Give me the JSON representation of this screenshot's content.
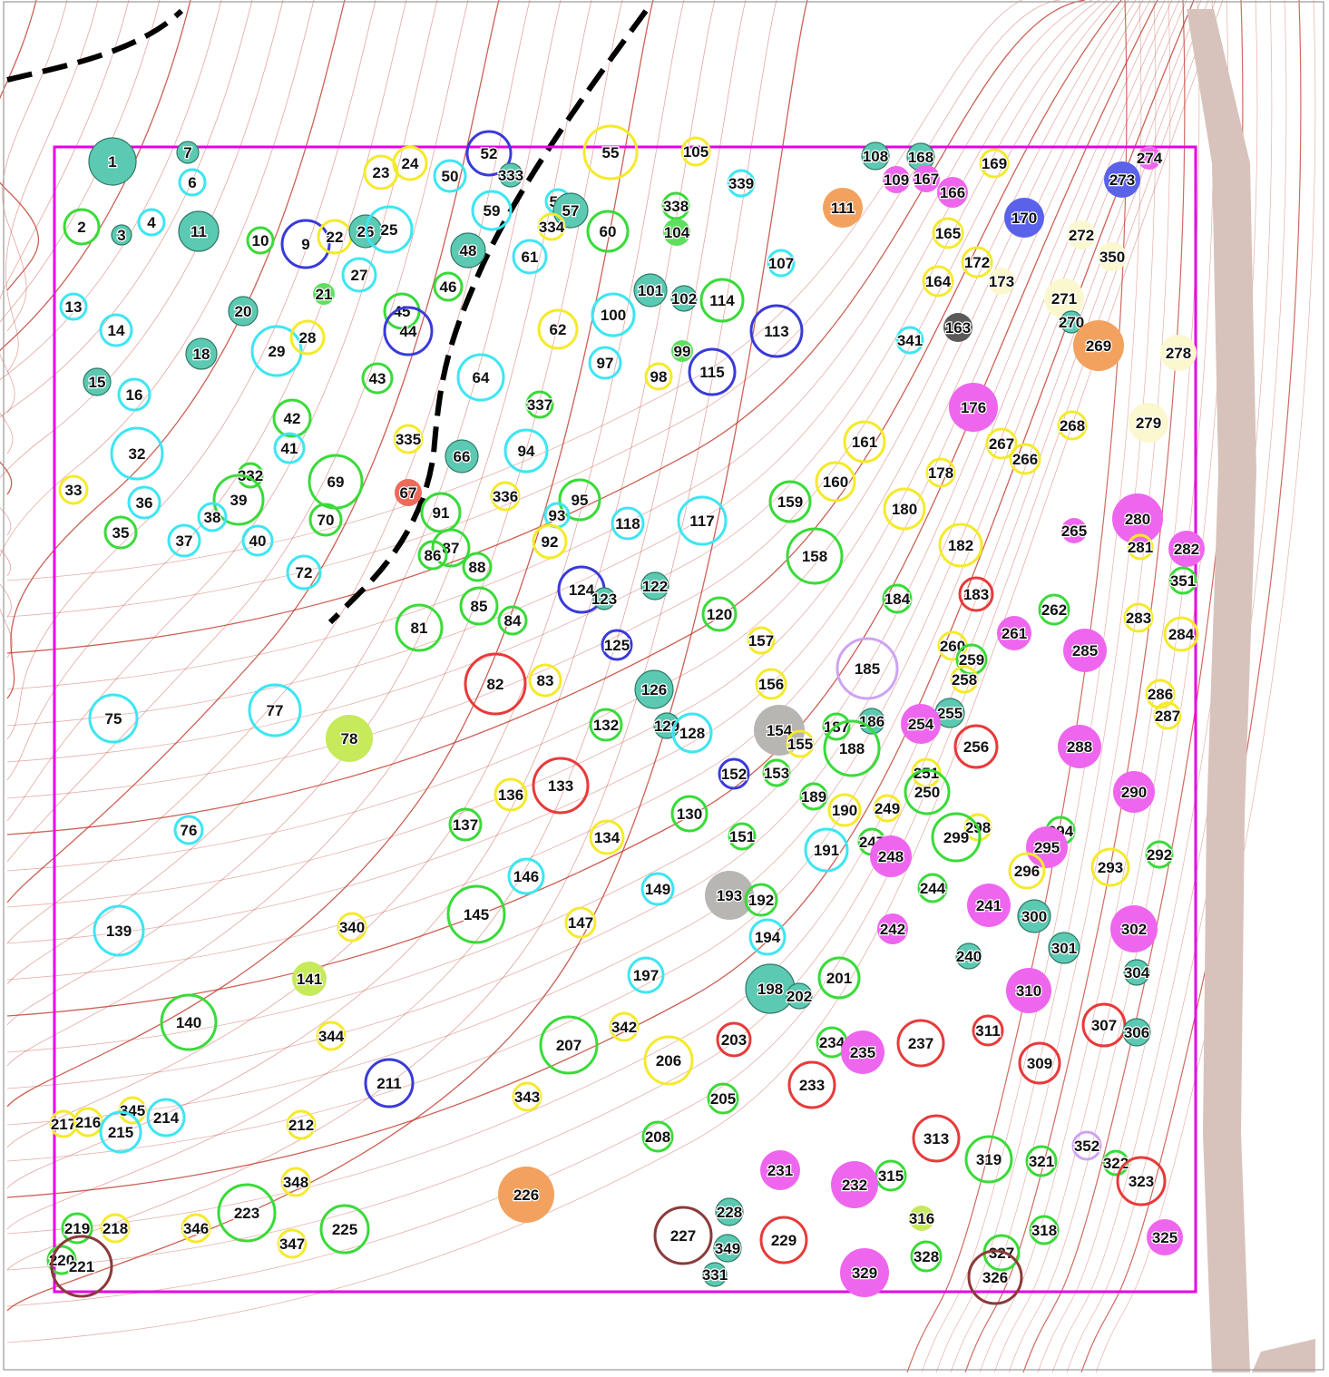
{
  "map": {
    "plot_border_color": "#e600e6",
    "road_color": "#d8c3bc",
    "contour_color": "#c0392b",
    "boundary_line_color": "#000000",
    "label_color": "#111111",
    "fills": {
      "cyan": "#66e8ea",
      "teal": "#5cc9b2",
      "green": "#5ee05e",
      "lime": "#c6ea5a",
      "magenta": "#ee66ee",
      "orange": "#f2a25e",
      "grey": "#b8b6b2",
      "darkgrey": "#5a5a5a",
      "blue": "#5a62ea",
      "cream": "#fbf7cf",
      "salmon": "#ee6a5a",
      "lavender": "#d7b7f0"
    },
    "outlines": {
      "cyan": "#3de6f2",
      "green": "#39db39",
      "yellow": "#f5ea2a",
      "blue": "#3a3ad9",
      "red": "#e83a3a",
      "brown": "#8b3a3a",
      "lavender": "#cda3f2",
      "dark": "#2e7a66"
    },
    "trees": [
      {
        "id": "1",
        "st": "f:teal"
      },
      {
        "id": "7",
        "st": "f:teal"
      },
      {
        "id": "6",
        "st": "o:cyan"
      },
      {
        "id": "2",
        "st": "o:green"
      },
      {
        "id": "3",
        "st": "f:teal"
      },
      {
        "id": "4",
        "st": "o:cyan"
      },
      {
        "id": "11",
        "st": "f:teal"
      },
      {
        "id": "10",
        "st": "o:green"
      },
      {
        "id": "9",
        "st": "o:blue"
      },
      {
        "id": "22",
        "st": "o:yellow"
      },
      {
        "id": "26",
        "st": "f:teal"
      },
      {
        "id": "25",
        "st": "o:cyan"
      },
      {
        "id": "23",
        "st": "o:yellow"
      },
      {
        "id": "24",
        "st": "o:yellow"
      },
      {
        "id": "50",
        "st": "o:cyan"
      },
      {
        "id": "52",
        "st": "o:blue"
      },
      {
        "id": "333",
        "st": "f:teal"
      },
      {
        "id": "55",
        "st": "o:yellow"
      },
      {
        "id": "105",
        "st": "o:yellow"
      },
      {
        "id": "108",
        "st": "f:teal"
      },
      {
        "id": "168",
        "st": "f:teal"
      },
      {
        "id": "109",
        "st": "f:magenta"
      },
      {
        "id": "167",
        "st": "f:magenta"
      },
      {
        "id": "166",
        "st": "f:magenta"
      },
      {
        "id": "169",
        "st": "o:yellow"
      },
      {
        "id": "273",
        "st": "f:blue"
      },
      {
        "id": "274",
        "st": "f:magenta"
      },
      {
        "id": "13",
        "st": "o:cyan"
      },
      {
        "id": "14",
        "st": "o:cyan"
      },
      {
        "id": "20",
        "st": "f:teal"
      },
      {
        "id": "27",
        "st": "o:cyan"
      },
      {
        "id": "21",
        "st": "f:green"
      },
      {
        "id": "48",
        "st": "f:teal"
      },
      {
        "id": "59",
        "st": "o:cyan"
      },
      {
        "id": "61",
        "st": "o:cyan"
      },
      {
        "id": "58",
        "st": "o:cyan"
      },
      {
        "id": "57",
        "st": "f:teal"
      },
      {
        "id": "334",
        "st": "o:yellow"
      },
      {
        "id": "60",
        "st": "o:green"
      },
      {
        "id": "338",
        "st": "o:green"
      },
      {
        "id": "104",
        "st": "f:green"
      },
      {
        "id": "339",
        "st": "o:cyan"
      },
      {
        "id": "111",
        "st": "f:orange"
      },
      {
        "id": "165",
        "st": "o:yellow"
      },
      {
        "id": "170",
        "st": "f:blue"
      },
      {
        "id": "272",
        "st": "f:cream"
      },
      {
        "id": "350",
        "st": "f:cream"
      },
      {
        "id": "107",
        "st": "o:cyan"
      },
      {
        "id": "172",
        "st": "o:yellow"
      },
      {
        "id": "173",
        "st": "f:cream"
      },
      {
        "id": "164",
        "st": "o:yellow"
      },
      {
        "id": "271",
        "st": "f:cream"
      },
      {
        "id": "270",
        "st": "f:teal"
      },
      {
        "id": "269",
        "st": "f:orange"
      },
      {
        "id": "278",
        "st": "f:cream"
      },
      {
        "id": "18",
        "st": "f:teal"
      },
      {
        "id": "29",
        "st": "o:cyan"
      },
      {
        "id": "28",
        "st": "o:yellow"
      },
      {
        "id": "45",
        "st": "o:green"
      },
      {
        "id": "44",
        "st": "o:blue"
      },
      {
        "id": "46",
        "st": "o:green"
      },
      {
        "id": "62",
        "st": "o:yellow"
      },
      {
        "id": "100",
        "st": "o:cyan"
      },
      {
        "id": "101",
        "st": "f:teal"
      },
      {
        "id": "102",
        "st": "f:teal"
      },
      {
        "id": "114",
        "st": "o:green"
      },
      {
        "id": "113",
        "st": "o:blue"
      },
      {
        "id": "341",
        "st": "o:cyan"
      },
      {
        "id": "163",
        "st": "f:darkgrey"
      },
      {
        "id": "15",
        "st": "f:teal"
      },
      {
        "id": "16",
        "st": "o:cyan"
      },
      {
        "id": "43",
        "st": "o:green"
      },
      {
        "id": "64",
        "st": "o:cyan"
      },
      {
        "id": "97",
        "st": "o:cyan"
      },
      {
        "id": "98",
        "st": "o:yellow"
      },
      {
        "id": "99",
        "st": "f:green"
      },
      {
        "id": "115",
        "st": "o:blue"
      },
      {
        "id": "176",
        "st": "f:magenta"
      },
      {
        "id": "268",
        "st": "o:yellow"
      },
      {
        "id": "279",
        "st": "f:cream"
      },
      {
        "id": "337",
        "st": "o:green"
      },
      {
        "id": "42",
        "st": "o:green"
      },
      {
        "id": "41",
        "st": "o:cyan"
      },
      {
        "id": "32",
        "st": "o:cyan"
      },
      {
        "id": "335",
        "st": "o:yellow"
      },
      {
        "id": "66",
        "st": "f:teal"
      },
      {
        "id": "94",
        "st": "o:cyan"
      },
      {
        "id": "161",
        "st": "o:yellow"
      },
      {
        "id": "267",
        "st": "o:yellow"
      },
      {
        "id": "266",
        "st": "o:yellow"
      },
      {
        "id": "178",
        "st": "o:yellow"
      },
      {
        "id": "33",
        "st": "o:yellow"
      },
      {
        "id": "332",
        "st": "o:green"
      },
      {
        "id": "39",
        "st": "o:green"
      },
      {
        "id": "69",
        "st": "o:green"
      },
      {
        "id": "67",
        "st": "f:salmon"
      },
      {
        "id": "336",
        "st": "o:yellow"
      },
      {
        "id": "95",
        "st": "o:green"
      },
      {
        "id": "160",
        "st": "o:yellow"
      },
      {
        "id": "159",
        "st": "o:green"
      },
      {
        "id": "180",
        "st": "o:yellow"
      },
      {
        "id": "280",
        "st": "f:magenta"
      },
      {
        "id": "36",
        "st": "o:cyan"
      },
      {
        "id": "38",
        "st": "o:cyan"
      },
      {
        "id": "70",
        "st": "o:green"
      },
      {
        "id": "91",
        "st": "o:green"
      },
      {
        "id": "93",
        "st": "o:cyan"
      },
      {
        "id": "118",
        "st": "o:cyan"
      },
      {
        "id": "117",
        "st": "o:cyan"
      },
      {
        "id": "265",
        "st": "f:magenta"
      },
      {
        "id": "35",
        "st": "o:green"
      },
      {
        "id": "37",
        "st": "o:cyan"
      },
      {
        "id": "40",
        "st": "o:cyan"
      },
      {
        "id": "87",
        "st": "o:green"
      },
      {
        "id": "86",
        "st": "o:green"
      },
      {
        "id": "92",
        "st": "o:yellow"
      },
      {
        "id": "158",
        "st": "o:green"
      },
      {
        "id": "182",
        "st": "o:yellow"
      },
      {
        "id": "281",
        "st": "o:yellow"
      },
      {
        "id": "282",
        "st": "f:magenta"
      },
      {
        "id": "72",
        "st": "o:cyan"
      },
      {
        "id": "88",
        "st": "o:green"
      },
      {
        "id": "124",
        "st": "o:blue"
      },
      {
        "id": "123",
        "st": "f:teal"
      },
      {
        "id": "122",
        "st": "f:teal"
      },
      {
        "id": "351",
        "st": "o:green"
      },
      {
        "id": "85",
        "st": "o:green"
      },
      {
        "id": "84",
        "st": "o:green"
      },
      {
        "id": "184",
        "st": "o:green"
      },
      {
        "id": "183",
        "st": "o:red"
      },
      {
        "id": "262",
        "st": "o:green"
      },
      {
        "id": "81",
        "st": "o:green"
      },
      {
        "id": "120",
        "st": "o:green"
      },
      {
        "id": "283",
        "st": "o:yellow"
      },
      {
        "id": "157",
        "st": "o:yellow"
      },
      {
        "id": "261",
        "st": "f:magenta"
      },
      {
        "id": "284",
        "st": "o:yellow"
      },
      {
        "id": "125",
        "st": "o:blue"
      },
      {
        "id": "260",
        "st": "o:yellow"
      },
      {
        "id": "259",
        "st": "o:green"
      },
      {
        "id": "285",
        "st": "f:magenta"
      },
      {
        "id": "185",
        "st": "o:lavender"
      },
      {
        "id": "82",
        "st": "o:red"
      },
      {
        "id": "83",
        "st": "o:yellow"
      },
      {
        "id": "258",
        "st": "o:yellow"
      },
      {
        "id": "126",
        "st": "f:teal"
      },
      {
        "id": "156",
        "st": "o:yellow"
      },
      {
        "id": "286",
        "st": "o:yellow"
      },
      {
        "id": "77",
        "st": "o:cyan"
      },
      {
        "id": "75",
        "st": "o:cyan"
      },
      {
        "id": "287",
        "st": "o:yellow"
      },
      {
        "id": "255",
        "st": "f:teal"
      },
      {
        "id": "186",
        "st": "f:teal"
      },
      {
        "id": "187",
        "st": "o:green"
      },
      {
        "id": "132",
        "st": "o:green"
      },
      {
        "id": "129",
        "st": "f:teal"
      },
      {
        "id": "128",
        "st": "o:cyan"
      },
      {
        "id": "154",
        "st": "f:grey"
      },
      {
        "id": "254",
        "st": "f:magenta"
      },
      {
        "id": "78",
        "st": "f:lime"
      },
      {
        "id": "155",
        "st": "o:yellow"
      },
      {
        "id": "188",
        "st": "o:green"
      },
      {
        "id": "256",
        "st": "o:red"
      },
      {
        "id": "288",
        "st": "f:magenta"
      },
      {
        "id": "152",
        "st": "o:blue"
      },
      {
        "id": "153",
        "st": "o:green"
      },
      {
        "id": "251",
        "st": "o:yellow"
      },
      {
        "id": "133",
        "st": "o:red"
      },
      {
        "id": "136",
        "st": "o:yellow"
      },
      {
        "id": "250",
        "st": "o:green"
      },
      {
        "id": "290",
        "st": "f:magenta"
      },
      {
        "id": "189",
        "st": "o:green"
      },
      {
        "id": "190",
        "st": "o:yellow"
      },
      {
        "id": "249",
        "st": "o:yellow"
      },
      {
        "id": "130",
        "st": "o:green"
      },
      {
        "id": "137",
        "st": "o:green"
      },
      {
        "id": "298",
        "st": "o:yellow"
      },
      {
        "id": "294",
        "st": "o:green"
      },
      {
        "id": "76",
        "st": "o:cyan"
      },
      {
        "id": "134",
        "st": "o:yellow"
      },
      {
        "id": "151",
        "st": "o:green"
      },
      {
        "id": "299",
        "st": "o:green"
      },
      {
        "id": "295",
        "st": "f:magenta"
      },
      {
        "id": "191",
        "st": "o:cyan"
      },
      {
        "id": "247",
        "st": "o:green"
      },
      {
        "id": "248",
        "st": "f:magenta"
      },
      {
        "id": "292",
        "st": "o:green"
      },
      {
        "id": "296",
        "st": "o:yellow"
      },
      {
        "id": "293",
        "st": "o:yellow"
      },
      {
        "id": "146",
        "st": "o:cyan"
      },
      {
        "id": "244",
        "st": "o:green"
      },
      {
        "id": "149",
        "st": "o:cyan"
      },
      {
        "id": "193",
        "st": "f:grey"
      },
      {
        "id": "192",
        "st": "o:green"
      },
      {
        "id": "241",
        "st": "f:magenta"
      },
      {
        "id": "145",
        "st": "o:green"
      },
      {
        "id": "300",
        "st": "f:teal"
      },
      {
        "id": "147",
        "st": "o:yellow"
      },
      {
        "id": "139",
        "st": "o:cyan"
      },
      {
        "id": "340",
        "st": "o:yellow"
      },
      {
        "id": "242",
        "st": "f:magenta"
      },
      {
        "id": "302",
        "st": "f:magenta"
      },
      {
        "id": "194",
        "st": "o:cyan"
      },
      {
        "id": "301",
        "st": "f:teal"
      },
      {
        "id": "240",
        "st": "f:teal"
      },
      {
        "id": "197",
        "st": "o:cyan"
      },
      {
        "id": "304",
        "st": "f:teal"
      },
      {
        "id": "141",
        "st": "f:lime"
      },
      {
        "id": "201",
        "st": "o:green"
      },
      {
        "id": "198",
        "st": "f:teal"
      },
      {
        "id": "202",
        "st": "f:teal"
      },
      {
        "id": "310",
        "st": "f:magenta"
      },
      {
        "id": "140",
        "st": "o:green"
      },
      {
        "id": "342",
        "st": "o:yellow"
      },
      {
        "id": "307",
        "st": "o:red"
      },
      {
        "id": "306",
        "st": "f:teal"
      },
      {
        "id": "311",
        "st": "o:red"
      },
      {
        "id": "344",
        "st": "o:yellow"
      },
      {
        "id": "207",
        "st": "o:green"
      },
      {
        "id": "203",
        "st": "o:red"
      },
      {
        "id": "234",
        "st": "o:green"
      },
      {
        "id": "237",
        "st": "o:red"
      },
      {
        "id": "235",
        "st": "f:magenta"
      },
      {
        "id": "206",
        "st": "o:yellow"
      },
      {
        "id": "309",
        "st": "o:red"
      },
      {
        "id": "211",
        "st": "o:blue"
      },
      {
        "id": "233",
        "st": "o:red"
      },
      {
        "id": "343",
        "st": "o:yellow"
      },
      {
        "id": "205",
        "st": "o:green"
      },
      {
        "id": "345",
        "st": "o:yellow"
      },
      {
        "id": "214",
        "st": "o:cyan"
      },
      {
        "id": "217",
        "st": "o:yellow"
      },
      {
        "id": "216",
        "st": "o:yellow"
      },
      {
        "id": "215",
        "st": "o:cyan"
      },
      {
        "id": "212",
        "st": "o:yellow"
      },
      {
        "id": "208",
        "st": "o:green"
      },
      {
        "id": "313",
        "st": "o:red"
      },
      {
        "id": "352",
        "st": "o:lavender"
      },
      {
        "id": "319",
        "st": "o:green"
      },
      {
        "id": "321",
        "st": "o:green"
      },
      {
        "id": "322",
        "st": "o:green"
      },
      {
        "id": "323",
        "st": "o:red"
      },
      {
        "id": "231",
        "st": "f:magenta"
      },
      {
        "id": "348",
        "st": "o:yellow"
      },
      {
        "id": "226",
        "st": "f:orange"
      },
      {
        "id": "315",
        "st": "o:green"
      },
      {
        "id": "232",
        "st": "f:magenta"
      },
      {
        "id": "223",
        "st": "o:green"
      },
      {
        "id": "228",
        "st": "f:teal"
      },
      {
        "id": "316",
        "st": "f:lime"
      },
      {
        "id": "219",
        "st": "o:green"
      },
      {
        "id": "218",
        "st": "o:yellow"
      },
      {
        "id": "346",
        "st": "o:yellow"
      },
      {
        "id": "225",
        "st": "o:green"
      },
      {
        "id": "227",
        "st": "o:brown"
      },
      {
        "id": "229",
        "st": "o:red"
      },
      {
        "id": "318",
        "st": "o:green"
      },
      {
        "id": "325",
        "st": "f:magenta"
      },
      {
        "id": "347",
        "st": "o:yellow"
      },
      {
        "id": "349",
        "st": "f:teal"
      },
      {
        "id": "328",
        "st": "o:green"
      },
      {
        "id": "327",
        "st": "o:green"
      },
      {
        "id": "220",
        "st": "o:green"
      },
      {
        "id": "221",
        "st": "o:brown"
      },
      {
        "id": "329",
        "st": "f:magenta"
      },
      {
        "id": "331",
        "st": "f:teal"
      },
      {
        "id": "326",
        "st": "o:brown"
      }
    ]
  }
}
